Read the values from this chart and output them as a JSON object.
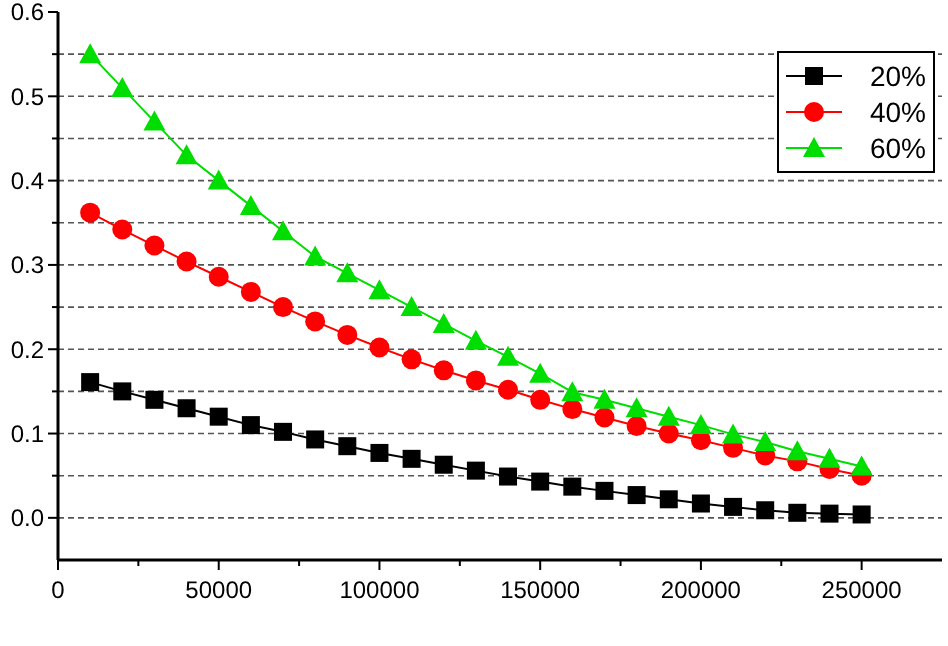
{
  "chart_data": {
    "type": "line",
    "x": [
      10000,
      20000,
      30000,
      40000,
      50000,
      60000,
      70000,
      80000,
      90000,
      100000,
      110000,
      120000,
      130000,
      140000,
      150000,
      160000,
      170000,
      180000,
      190000,
      200000,
      210000,
      220000,
      230000,
      240000,
      250000
    ],
    "series": [
      {
        "name": "20%",
        "color": "#000000",
        "marker": "square",
        "values": [
          0.161,
          0.15,
          0.14,
          0.13,
          0.12,
          0.11,
          0.102,
          0.093,
          0.085,
          0.077,
          0.07,
          0.063,
          0.056,
          0.049,
          0.043,
          0.037,
          0.032,
          0.027,
          0.022,
          0.017,
          0.013,
          0.009,
          0.006,
          0.005,
          0.004
        ]
      },
      {
        "name": "40%",
        "color": "#ff0000",
        "marker": "circle",
        "values": [
          0.362,
          0.342,
          0.323,
          0.304,
          0.286,
          0.268,
          0.25,
          0.233,
          0.217,
          0.202,
          0.188,
          0.175,
          0.163,
          0.152,
          0.14,
          0.129,
          0.119,
          0.109,
          0.1,
          0.092,
          0.083,
          0.074,
          0.067,
          0.058,
          0.05
        ]
      },
      {
        "name": "60%",
        "color": "#00dd00",
        "marker": "triangle",
        "values": [
          0.55,
          0.51,
          0.47,
          0.43,
          0.4,
          0.37,
          0.34,
          0.31,
          0.29,
          0.27,
          0.25,
          0.23,
          0.21,
          0.191,
          0.171,
          0.149,
          0.14,
          0.13,
          0.12,
          0.11,
          0.099,
          0.09,
          0.079,
          0.07,
          0.061
        ]
      }
    ],
    "xlim": [
      0,
      275000
    ],
    "xticks": [
      0,
      {
        "value": 25000,
        "label": null
      },
      50000,
      {
        "value": 75000,
        "label": null
      },
      100000,
      {
        "value": 125000,
        "label": null
      },
      150000,
      {
        "value": 175000,
        "label": null
      },
      200000,
      {
        "value": 225000,
        "label": null
      },
      250000
    ],
    "ylim": [
      -0.05,
      0.6
    ],
    "yticks": [
      {
        "value": 0,
        "label": "0.0"
      },
      {
        "value": 0.05,
        "label": null
      },
      {
        "value": 0.1,
        "label": "0.1"
      },
      {
        "value": 0.15,
        "label": null
      },
      {
        "value": 0.2,
        "label": "0.2"
      },
      {
        "value": 0.25,
        "label": null
      },
      {
        "value": 0.3,
        "label": "0.3"
      },
      {
        "value": 0.35,
        "label": null
      },
      {
        "value": 0.4,
        "label": "0.4"
      },
      {
        "value": 0.45,
        "label": null
      },
      {
        "value": 0.5,
        "label": "0.5"
      },
      {
        "value": 0.55,
        "label": null
      },
      {
        "value": 0.6,
        "label": "0.6"
      }
    ],
    "grid": "y",
    "legend": "top right",
    "line_style": "solid"
  }
}
